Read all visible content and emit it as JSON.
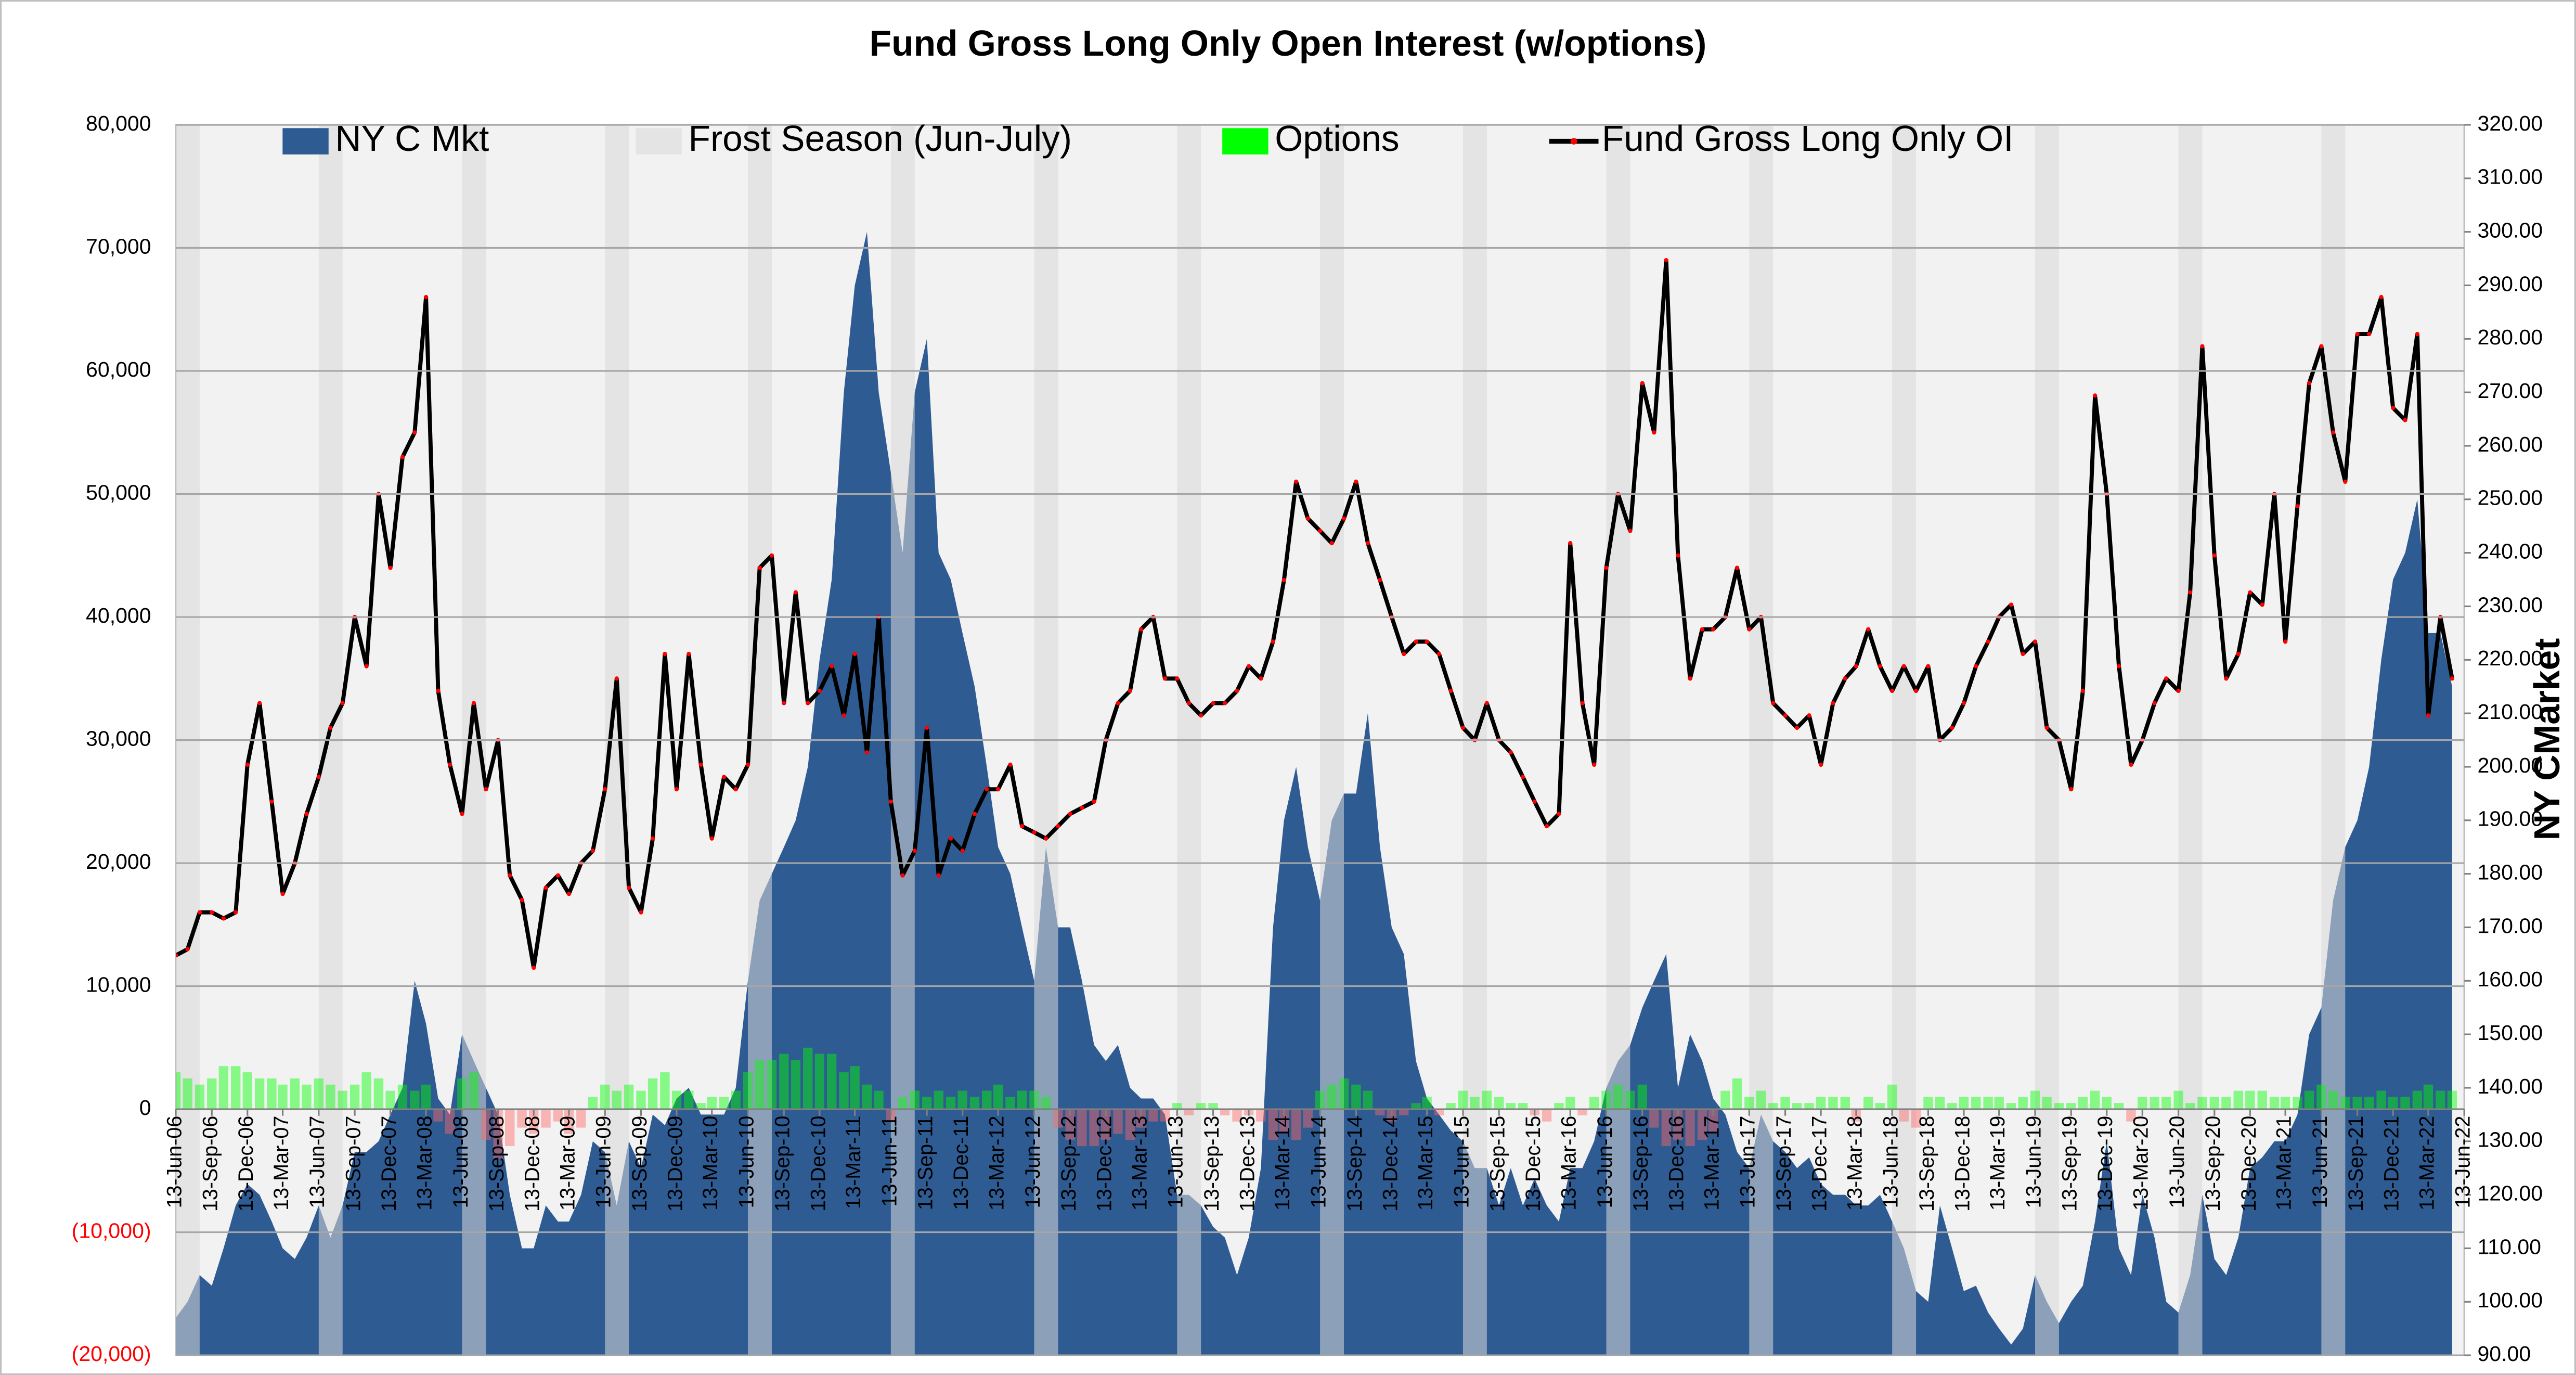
{
  "chart_data": {
    "type": "combo",
    "title": "Fund Gross Long Only Open Interest (w/options)",
    "y2_title": "NY CMarket",
    "xlim": [
      "13-Jun-06",
      "13-Jun-22"
    ],
    "xticks": [
      "13-Jun-06",
      "13-Sep-06",
      "13-Dec-06",
      "13-Mar-07",
      "13-Jun-07",
      "13-Sep-07",
      "13-Dec-07",
      "13-Mar-08",
      "13-Jun-08",
      "13-Sep-08",
      "13-Dec-08",
      "13-Mar-09",
      "13-Jun-09",
      "13-Sep-09",
      "13-Dec-09",
      "13-Mar-10",
      "13-Jun-10",
      "13-Sep-10",
      "13-Dec-10",
      "13-Mar-11",
      "13-Jun-11",
      "13-Sep-11",
      "13-Dec-11",
      "13-Mar-12",
      "13-Jun-12",
      "13-Sep-12",
      "13-Dec-12",
      "13-Mar-13",
      "13-Jun-13",
      "13-Sep-13",
      "13-Dec-13",
      "13-Mar-14",
      "13-Jun-14",
      "13-Sep-14",
      "13-Dec-14",
      "13-Mar-15",
      "13-Jun-15",
      "13-Sep-15",
      "13-Dec-15",
      "13-Mar-16",
      "13-Jun-16",
      "13-Sep-16",
      "13-Dec-16",
      "13-Mar-17",
      "13-Jun-17",
      "13-Sep-17",
      "13-Dec-17",
      "13-Mar-18",
      "13-Jun-18",
      "13-Sep-18",
      "13-Dec-18",
      "13-Mar-19",
      "13-Jun-19",
      "13-Sep-19",
      "13-Dec-19",
      "13-Mar-20",
      "13-Jun-20",
      "13-Sep-20",
      "13-Dec-20",
      "13-Mar-21",
      "13-Jun-21",
      "13-Sep-21",
      "13-Dec-21",
      "13-Mar-22",
      "13-Jun-22"
    ],
    "ylim": [
      -20000,
      80000
    ],
    "yticks": [
      {
        "value": -20000,
        "label": "(20,000)"
      },
      {
        "value": -10000,
        "label": "(10,000)"
      },
      0,
      {
        "value": 10000,
        "label": "10,000"
      },
      {
        "value": 20000,
        "label": "20,000"
      },
      {
        "value": 30000,
        "label": "30,000"
      },
      {
        "value": 40000,
        "label": "40,000"
      },
      {
        "value": 50000,
        "label": "50,000"
      },
      {
        "value": 60000,
        "label": "60,000"
      },
      {
        "value": 70000,
        "label": "70,000"
      },
      {
        "value": 80000,
        "label": "80,000"
      }
    ],
    "negative_tick_color": "#ff0000",
    "y2lim": [
      90,
      320
    ],
    "y2ticks": [
      {
        "value": 90,
        "label": "90.00"
      },
      {
        "value": 100,
        "label": "100.00"
      },
      {
        "value": 110,
        "label": "110.00"
      },
      {
        "value": 120,
        "label": "120.00"
      },
      {
        "value": 130,
        "label": "130.00"
      },
      {
        "value": 140,
        "label": "140.00"
      },
      {
        "value": 150,
        "label": "150.00"
      },
      {
        "value": 160,
        "label": "160.00"
      },
      {
        "value": 170,
        "label": "170.00"
      },
      {
        "value": 180,
        "label": "180.00"
      },
      {
        "value": 190,
        "label": "190.00"
      },
      {
        "value": 200,
        "label": "200.00"
      },
      {
        "value": 210,
        "label": "210.00"
      },
      {
        "value": 220,
        "label": "220.00"
      },
      {
        "value": 230,
        "label": "230.00"
      },
      {
        "value": 240,
        "label": "240.00"
      },
      {
        "value": 250,
        "label": "250.00"
      },
      {
        "value": 260,
        "label": "260.00"
      },
      {
        "value": 270,
        "label": "270.00"
      },
      {
        "value": 280,
        "label": "280.00"
      },
      {
        "value": 290,
        "label": "290.00"
      },
      {
        "value": 300,
        "label": "300.00"
      },
      {
        "value": 310,
        "label": "310.00"
      },
      {
        "value": 320,
        "label": "320.00"
      }
    ],
    "grid": true,
    "legend": "top",
    "x": [
      "13-Jun-06",
      "13-Jul-06",
      "13-Aug-06",
      "13-Sep-06",
      "13-Oct-06",
      "13-Nov-06",
      "13-Dec-06",
      "13-Jan-07",
      "13-Feb-07",
      "13-Mar-07",
      "13-Apr-07",
      "13-May-07",
      "13-Jun-07",
      "13-Jul-07",
      "13-Aug-07",
      "13-Sep-07",
      "13-Oct-07",
      "13-Nov-07",
      "13-Dec-07",
      "13-Jan-08",
      "13-Feb-08",
      "13-Mar-08",
      "13-Apr-08",
      "13-May-08",
      "13-Jun-08",
      "13-Jul-08",
      "13-Aug-08",
      "13-Sep-08",
      "13-Oct-08",
      "13-Nov-08",
      "13-Dec-08",
      "13-Jan-09",
      "13-Feb-09",
      "13-Mar-09",
      "13-Apr-09",
      "13-May-09",
      "13-Jun-09",
      "13-Jul-09",
      "13-Aug-09",
      "13-Sep-09",
      "13-Oct-09",
      "13-Nov-09",
      "13-Dec-09",
      "13-Jan-10",
      "13-Feb-10",
      "13-Mar-10",
      "13-Apr-10",
      "13-May-10",
      "13-Jun-10",
      "13-Jul-10",
      "13-Aug-10",
      "13-Sep-10",
      "13-Oct-10",
      "13-Nov-10",
      "13-Dec-10",
      "13-Jan-11",
      "13-Feb-11",
      "13-Mar-11",
      "13-Apr-11",
      "13-May-11",
      "13-Jun-11",
      "13-Jul-11",
      "13-Aug-11",
      "13-Sep-11",
      "13-Oct-11",
      "13-Nov-11",
      "13-Dec-11",
      "13-Jan-12",
      "13-Feb-12",
      "13-Mar-12",
      "13-Apr-12",
      "13-May-12",
      "13-Jun-12",
      "13-Jul-12",
      "13-Aug-12",
      "13-Sep-12",
      "13-Oct-12",
      "13-Nov-12",
      "13-Dec-12",
      "13-Jan-13",
      "13-Feb-13",
      "13-Mar-13",
      "13-Apr-13",
      "13-May-13",
      "13-Jun-13",
      "13-Jul-13",
      "13-Aug-13",
      "13-Sep-13",
      "13-Oct-13",
      "13-Nov-13",
      "13-Dec-13",
      "13-Jan-14",
      "13-Feb-14",
      "13-Mar-14",
      "13-Apr-14",
      "13-May-14",
      "13-Jun-14",
      "13-Jul-14",
      "13-Aug-14",
      "13-Sep-14",
      "13-Oct-14",
      "13-Nov-14",
      "13-Dec-14",
      "13-Jan-15",
      "13-Feb-15",
      "13-Mar-15",
      "13-Apr-15",
      "13-May-15",
      "13-Jun-15",
      "13-Jul-15",
      "13-Aug-15",
      "13-Sep-15",
      "13-Oct-15",
      "13-Nov-15",
      "13-Dec-15",
      "13-Jan-16",
      "13-Feb-16",
      "13-Mar-16",
      "13-Apr-16",
      "13-May-16",
      "13-Jun-16",
      "13-Jul-16",
      "13-Aug-16",
      "13-Sep-16",
      "13-Oct-16",
      "13-Nov-16",
      "13-Dec-16",
      "13-Jan-17",
      "13-Feb-17",
      "13-Mar-17",
      "13-Apr-17",
      "13-May-17",
      "13-Jun-17",
      "13-Jul-17",
      "13-Aug-17",
      "13-Sep-17",
      "13-Oct-17",
      "13-Nov-17",
      "13-Dec-17",
      "13-Jan-18",
      "13-Feb-18",
      "13-Mar-18",
      "13-Apr-18",
      "13-May-18",
      "13-Jun-18",
      "13-Jul-18",
      "13-Aug-18",
      "13-Sep-18",
      "13-Oct-18",
      "13-Nov-18",
      "13-Dec-18",
      "13-Jan-19",
      "13-Feb-19",
      "13-Mar-19",
      "13-Apr-19",
      "13-May-19",
      "13-Jun-19",
      "13-Jul-19",
      "13-Aug-19",
      "13-Sep-19",
      "13-Oct-19",
      "13-Nov-19",
      "13-Dec-19",
      "13-Jan-20",
      "13-Feb-20",
      "13-Mar-20",
      "13-Apr-20",
      "13-May-20",
      "13-Jun-20",
      "13-Jul-20",
      "13-Aug-20",
      "13-Sep-20",
      "13-Oct-20",
      "13-Nov-20",
      "13-Dec-20",
      "13-Jan-21",
      "13-Feb-21",
      "13-Mar-21",
      "13-Apr-21",
      "13-May-21",
      "13-Jun-21",
      "13-Jul-21",
      "13-Aug-21",
      "13-Sep-21",
      "13-Oct-21",
      "13-Nov-21",
      "13-Dec-21",
      "13-Jan-22",
      "13-Feb-22",
      "13-Mar-22",
      "13-Apr-22",
      "13-May-22"
    ],
    "series": [
      {
        "name": "NY C Mkt",
        "type": "area",
        "axis": "y2",
        "color": "#2f5b93",
        "values": [
          97,
          100,
          105,
          103,
          110,
          118,
          122,
          120,
          115,
          110,
          108,
          112,
          118,
          112,
          118,
          128,
          128,
          130,
          135,
          140,
          160,
          152,
          138,
          135,
          150,
          145,
          140,
          135,
          120,
          110,
          110,
          118,
          115,
          115,
          120,
          130,
          128,
          118,
          130,
          125,
          135,
          133,
          138,
          140,
          135,
          135,
          135,
          140,
          160,
          175,
          180,
          185,
          190,
          200,
          220,
          235,
          270,
          290,
          300,
          270,
          255,
          240,
          270,
          280,
          240,
          235,
          225,
          215,
          200,
          185,
          180,
          170,
          160,
          185,
          170,
          170,
          160,
          148,
          145,
          148,
          140,
          138,
          138,
          135,
          120,
          120,
          118,
          114,
          112,
          105,
          112,
          125,
          170,
          190,
          200,
          185,
          175,
          190,
          195,
          195,
          210,
          185,
          170,
          165,
          145,
          138,
          135,
          132,
          130,
          125,
          125,
          118,
          125,
          118,
          123,
          118,
          115,
          125,
          125,
          130,
          140,
          145,
          148,
          155,
          160,
          165,
          140,
          150,
          145,
          138,
          135,
          128,
          125,
          135,
          130,
          128,
          125,
          127,
          122,
          120,
          120,
          118,
          118,
          120,
          115,
          110,
          102,
          100,
          118,
          110,
          102,
          103,
          98,
          95,
          92,
          95,
          105,
          100,
          96,
          100,
          103,
          115,
          130,
          110,
          105,
          120,
          112,
          100,
          98,
          105,
          120,
          108,
          105,
          112,
          125,
          127,
          130,
          130,
          135,
          150,
          155,
          175,
          185,
          190,
          200,
          220,
          235,
          240,
          250,
          225,
          225,
          215
        ]
      },
      {
        "name": "Frost Season (Jun-July)",
        "type": "band",
        "color": "#d9d9d9",
        "ranges": [
          [
            "13-Jun-06",
            "13-Aug-06"
          ],
          [
            "13-Jun-07",
            "13-Aug-07"
          ],
          [
            "13-Jun-08",
            "13-Aug-08"
          ],
          [
            "13-Jun-09",
            "13-Aug-09"
          ],
          [
            "13-Jun-10",
            "13-Aug-10"
          ],
          [
            "13-Jun-11",
            "13-Aug-11"
          ],
          [
            "13-Jun-12",
            "13-Aug-12"
          ],
          [
            "13-Jun-13",
            "13-Aug-13"
          ],
          [
            "13-Jun-14",
            "13-Aug-14"
          ],
          [
            "13-Jun-15",
            "13-Aug-15"
          ],
          [
            "13-Jun-16",
            "13-Aug-16"
          ],
          [
            "13-Jun-17",
            "13-Aug-17"
          ],
          [
            "13-Jun-18",
            "13-Aug-18"
          ],
          [
            "13-Jun-19",
            "13-Aug-19"
          ],
          [
            "13-Jun-20",
            "13-Aug-20"
          ],
          [
            "13-Jun-21",
            "13-Aug-21"
          ]
        ]
      },
      {
        "name": "Options",
        "type": "bar",
        "color": "#00ff00",
        "negative_color": "#ff6666",
        "values": [
          3000,
          2500,
          2000,
          2500,
          3500,
          3500,
          3000,
          2500,
          2500,
          2000,
          2500,
          2000,
          2500,
          2000,
          1500,
          2000,
          3000,
          2500,
          1500,
          2000,
          1500,
          2000,
          -1000,
          -2000,
          2500,
          3000,
          -2500,
          -4000,
          -3000,
          -1500,
          -2000,
          -1500,
          -1000,
          -2000,
          -1500,
          1000,
          2000,
          1500,
          2000,
          1500,
          2500,
          3000,
          1500,
          1500,
          500,
          1000,
          1000,
          1500,
          3000,
          4000,
          4000,
          4500,
          4000,
          5000,
          4500,
          4500,
          3000,
          3500,
          2000,
          1500,
          -1000,
          1000,
          1500,
          1000,
          1500,
          1000,
          1500,
          1000,
          1500,
          2000,
          1000,
          1500,
          1500,
          1000,
          -1500,
          -2500,
          -3000,
          -3000,
          -2500,
          -2000,
          -2500,
          -1500,
          -1000,
          -1000,
          500,
          -500,
          500,
          500,
          -500,
          -1000,
          -500,
          -1000,
          -2500,
          -2000,
          -2500,
          -1500,
          1500,
          2000,
          2500,
          2000,
          1500,
          -500,
          -1000,
          -500,
          500,
          1000,
          -500,
          500,
          1500,
          1000,
          1500,
          1000,
          500,
          500,
          -500,
          -1000,
          500,
          1000,
          -500,
          1000,
          1500,
          2000,
          1500,
          2000,
          -1500,
          -3000,
          -2500,
          -3000,
          -2500,
          -2000,
          1500,
          2500,
          1000,
          1500,
          500,
          1000,
          500,
          500,
          1000,
          1000,
          1000,
          -1000,
          1000,
          500,
          2000,
          -1000,
          -1500,
          1000,
          1000,
          500,
          1000,
          1000,
          1000,
          1000,
          500,
          1000,
          1500,
          1000,
          500,
          500,
          1000,
          1500,
          1000,
          500,
          -1000,
          1000,
          1000,
          1000,
          1500,
          500,
          1000,
          1000,
          1000,
          1500,
          1500,
          1500,
          1000,
          1000,
          1000,
          1500,
          2000,
          1500,
          1000,
          1000,
          1000,
          1500,
          1000,
          1000,
          1500,
          2000,
          1500,
          1500
        ]
      },
      {
        "name": "Fund Gross Long Only OI",
        "type": "line",
        "color": "#000000",
        "marker_color": "#ff0000",
        "values": [
          12500,
          13000,
          16000,
          16000,
          15500,
          16000,
          28000,
          33000,
          25000,
          17500,
          20000,
          24000,
          27000,
          31000,
          33000,
          40000,
          36000,
          50000,
          44000,
          53000,
          55000,
          66000,
          34000,
          28000,
          24000,
          33000,
          26000,
          30000,
          19000,
          17000,
          11500,
          18000,
          19000,
          17500,
          20000,
          21000,
          26000,
          35000,
          18000,
          16000,
          22000,
          37000,
          26000,
          37000,
          28000,
          22000,
          27000,
          26000,
          28000,
          44000,
          45000,
          33000,
          42000,
          33000,
          34000,
          36000,
          32000,
          37000,
          29000,
          40000,
          25000,
          19000,
          21000,
          31000,
          19000,
          22000,
          21000,
          24000,
          26000,
          26000,
          28000,
          23000,
          22500,
          22000,
          23000,
          24000,
          24500,
          25000,
          30000,
          33000,
          34000,
          39000,
          40000,
          35000,
          35000,
          33000,
          32000,
          33000,
          33000,
          34000,
          36000,
          35000,
          38000,
          43000,
          51000,
          48000,
          47000,
          46000,
          48000,
          51000,
          46000,
          43000,
          40000,
          37000,
          38000,
          38000,
          37000,
          34000,
          31000,
          30000,
          33000,
          30000,
          29000,
          27000,
          25000,
          23000,
          24000,
          46000,
          33000,
          28000,
          44000,
          50000,
          47000,
          59000,
          55000,
          69000,
          45000,
          35000,
          39000,
          39000,
          40000,
          44000,
          39000,
          40000,
          33000,
          32000,
          31000,
          32000,
          28000,
          33000,
          35000,
          36000,
          39000,
          36000,
          34000,
          36000,
          34000,
          36000,
          30000,
          31000,
          33000,
          36000,
          38000,
          40000,
          41000,
          37000,
          38000,
          31000,
          30000,
          26000,
          34000,
          58000,
          50000,
          36000,
          28000,
          30000,
          33000,
          35000,
          34000,
          42000,
          62000,
          45000,
          35000,
          37000,
          42000,
          41000,
          50000,
          38000,
          49000,
          59000,
          62000,
          55000,
          51000,
          63000,
          63000,
          66000,
          57000,
          56000,
          63000,
          32000,
          40000,
          35000
        ]
      }
    ]
  }
}
